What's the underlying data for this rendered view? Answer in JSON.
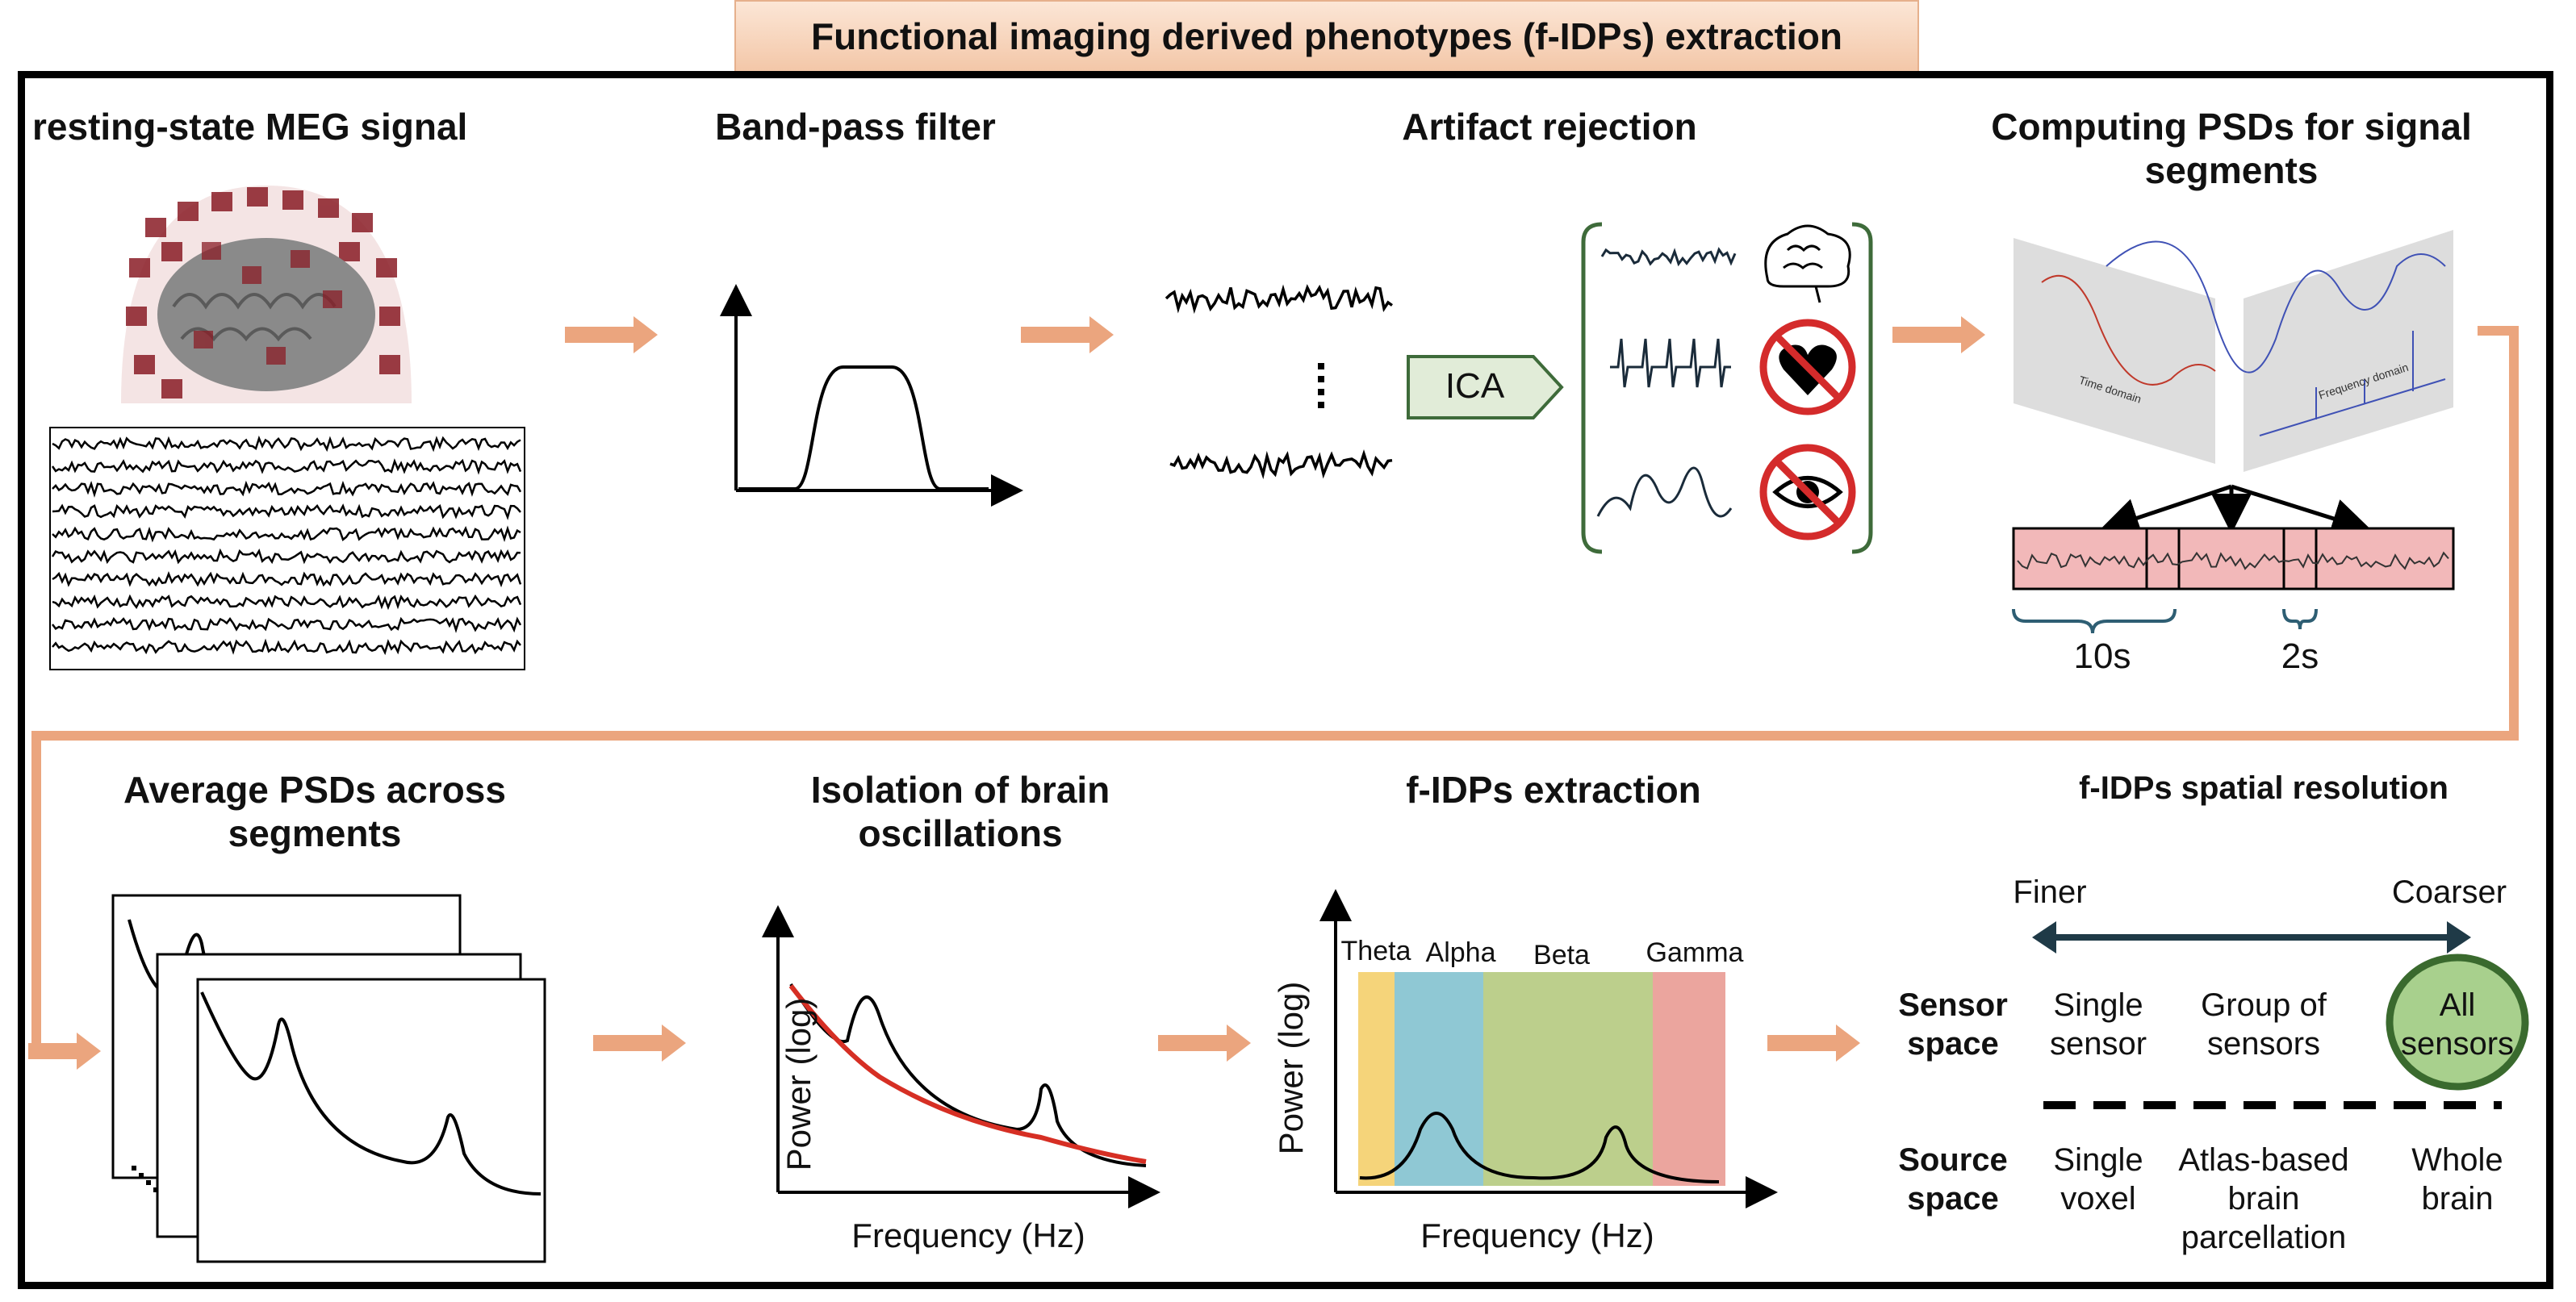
{
  "title": "Functional imaging derived phenotypes (f-IDPs) extraction",
  "top_row": {
    "step1": "resting-state MEG signal",
    "step2": "Band-pass filter",
    "step3": "Artifact rejection",
    "ica_label": "ICA",
    "step4": "Computing PSDs for signal segments",
    "segment_long": "10s",
    "segment_short": "2s",
    "time_domain": "Time domain",
    "frequency_domain": "Frequency domain"
  },
  "bottom_row": {
    "step5": "Average PSDs across segments",
    "step6": "Isolation of brain oscillations",
    "step7": "f-IDPs extraction",
    "step8": "f-IDPs spatial resolution",
    "ylabel": "Power (log)",
    "xlabel": "Frequency (Hz)",
    "bands": [
      "Theta",
      "Alpha",
      "Beta",
      "Gamma"
    ],
    "band_colors": [
      "#f5d47a",
      "#8fc8d4",
      "#bccf8c",
      "#eba59e"
    ]
  },
  "resolution": {
    "finer": "Finer",
    "coarser": "Coarser",
    "sensor_space": "Sensor space",
    "source_space": "Source space",
    "sensor_items": [
      "Single sensor",
      "Group of sensors",
      "All sensors"
    ],
    "source_items": [
      "Single voxel",
      "Atlas-based brain parcellation",
      "Whole brain"
    ],
    "highlight_fill": "#a8d08d",
    "highlight_stroke": "#3a6a2e"
  },
  "colors": {
    "arrow": "#eba57e",
    "ica_fill": "#e1ecd8",
    "ica_stroke": "#3e6b3a",
    "segment_fill": "#f2b8b9",
    "bracket": "#2e5e73"
  }
}
